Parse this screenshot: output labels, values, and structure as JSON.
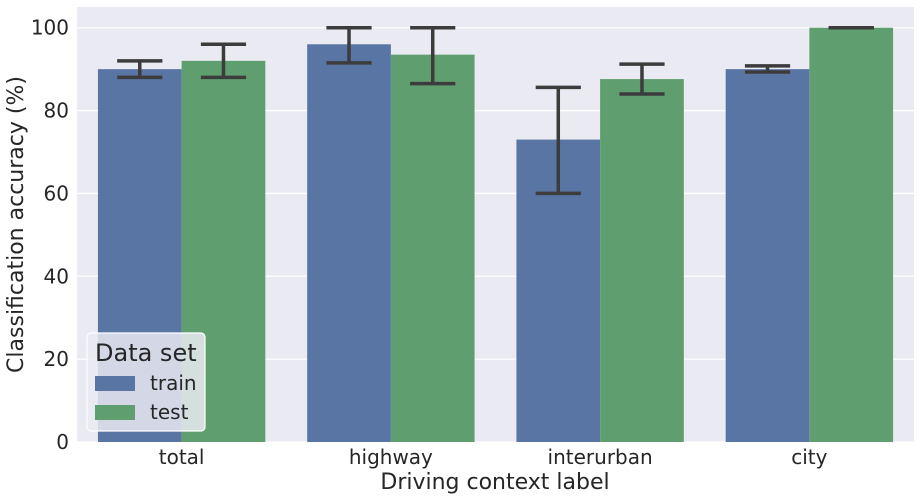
{
  "chart_data": {
    "type": "bar",
    "title": "",
    "xlabel": "Driving context label",
    "ylabel": "Classification accuracy (%)",
    "categories": [
      "total",
      "highway",
      "interurban",
      "city"
    ],
    "series": [
      {
        "name": "train",
        "color": "#5975a4",
        "values": [
          90,
          96,
          73,
          90
        ],
        "err_low": [
          88,
          91.5,
          60,
          89.3
        ],
        "err_high": [
          92,
          100,
          85.6,
          90.8
        ]
      },
      {
        "name": "test",
        "color": "#5f9e6e",
        "values": [
          92,
          93.5,
          87.6,
          100
        ],
        "err_low": [
          88,
          86.5,
          84,
          100
        ],
        "err_high": [
          96,
          100,
          91.2,
          100
        ]
      }
    ],
    "ylim": [
      0,
      105
    ],
    "yticks": [
      0,
      20,
      40,
      60,
      80,
      100
    ],
    "grid": true,
    "legend": {
      "title": "Data set",
      "placement": "lower-left"
    },
    "background_color": "#eaeaf2",
    "errorbar_color": "#3c3c3c"
  }
}
